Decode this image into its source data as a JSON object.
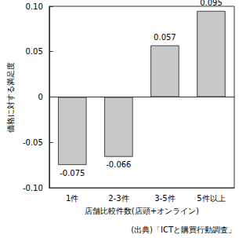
{
  "chart_data": {
    "type": "bar",
    "categories": [
      "1件",
      "2-3件",
      "3-5件",
      "5件以上"
    ],
    "values": [
      -0.075,
      -0.066,
      0.057,
      0.095
    ],
    "color": "#c8c8c8",
    "xlabel": "店舗比較件数(店頭+オンライン)",
    "ylabel": "価格に対する満足度",
    "annotation": "(出典)「ICTと購買行動調査」",
    "ylim": [
      -0.1,
      0.1
    ],
    "yticks": [
      {
        "value": -0.1,
        "label": "-0.10"
      },
      -0.05,
      0,
      0.05,
      {
        "value": 0.1,
        "label": "0.10"
      }
    ],
    "data_labels": true,
    "grid": false
  }
}
